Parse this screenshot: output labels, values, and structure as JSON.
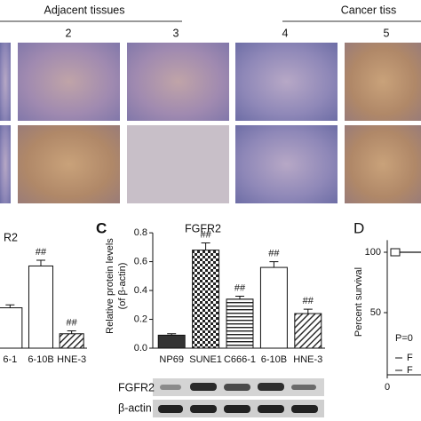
{
  "header": {
    "adjacent": "Adjacent tissues",
    "cancer": "Cancer tiss",
    "labels": [
      "2",
      "3",
      "4",
      "5"
    ]
  },
  "blot": {
    "rows": [
      "FGFR2",
      "β-actin"
    ]
  },
  "chart_data": [
    {
      "type": "bar",
      "panel": "C",
      "title": "FGFR2",
      "y_label": [
        "Relative protein levels",
        "(of β-actin)"
      ],
      "categories": [
        "NP69",
        "SUNE1",
        "C666-1",
        "6-10B",
        "HNE-3"
      ],
      "values": [
        0.09,
        0.68,
        0.34,
        0.56,
        0.24
      ],
      "errors": [
        0.01,
        0.05,
        0.02,
        0.04,
        0.03
      ],
      "annotations": [
        null,
        "##",
        "##",
        "##",
        "##"
      ],
      "color": "#333333",
      "ylim": [
        0,
        0.85
      ],
      "yticks": [
        {
          "value": 0,
          "label": "0.0"
        },
        0.2,
        0.4,
        0.6,
        0.8
      ]
    },
    {
      "type": "bar",
      "title": "R2",
      "categories": [
        "6-1",
        "6-10B",
        "HNE-3"
      ],
      "values": [
        0.28,
        0.57,
        0.1
      ],
      "errors": [
        0.02,
        0.04,
        0.02
      ],
      "annotations": [
        null,
        "##",
        "##"
      ],
      "color": "#333333",
      "ylim": [
        0,
        0.85
      ]
    },
    {
      "type": "line",
      "panel": "D",
      "y_label": "Percent survival",
      "values": [
        100,
        100
      ],
      "ylim": [
        0,
        110
      ],
      "yticks": [
        50,
        100
      ],
      "xticks": [
        0
      ],
      "annotation": "P=0",
      "legend": [
        "F",
        "F"
      ],
      "color": "#111111"
    }
  ]
}
